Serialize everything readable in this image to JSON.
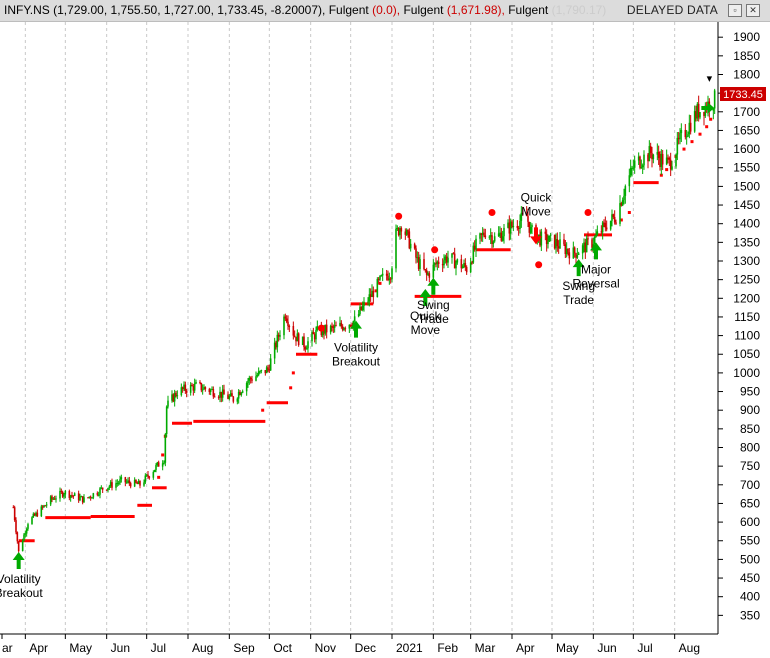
{
  "window": {
    "symbol": "INFY.NS",
    "ohlc": "(1,729.00, 1,755.50, 1,727.00, 1,733.45, -8.20007),",
    "ind1_name": "Fulgent",
    "ind1_val": "(0.0),",
    "ind2_name": "Fulgent",
    "ind2_val": "(1,671.98),",
    "ind3_name": "Fulgent",
    "ind3_val": "(1,790.17)",
    "delayed": "DELAYED DATA",
    "restore_icon": "restore-icon",
    "close_icon": "close-icon",
    "colors": {
      "title_text": "#000000",
      "ind_zero": "#cc0000",
      "ind2": "#cc0000",
      "ind3": "#cccccc"
    }
  },
  "price_tag": "1733.45",
  "chart_data": {
    "type": "candlestick",
    "symbol": "INFY.NS",
    "y_axis": {
      "ticks": [
        350,
        400,
        450,
        500,
        550,
        600,
        650,
        700,
        750,
        800,
        850,
        900,
        950,
        1000,
        1050,
        1100,
        1150,
        1200,
        1250,
        1300,
        1350,
        1400,
        1450,
        1500,
        1550,
        1600,
        1650,
        1700,
        1750,
        1800,
        1850,
        1900
      ],
      "ylim": [
        300,
        1930
      ],
      "position": "right"
    },
    "x_axis": {
      "labels": [
        "ar",
        "Apr",
        "May",
        "Jun",
        "Jul",
        "Aug",
        "Sep",
        "Oct",
        "Nov",
        "Dec",
        "2021",
        "Feb",
        "Mar",
        "Apr",
        "May",
        "Jun",
        "Jul",
        "Aug"
      ]
    },
    "grid": "vertical dashed",
    "colors": {
      "up": "#00aa00",
      "down": "#cc0000",
      "stop": "#ff0000",
      "signal_up": "#00aa00",
      "signal_down": "#ff0000"
    },
    "price_path": [
      [
        "2020-03-23",
        640
      ],
      [
        "2020-03-27",
        520
      ],
      [
        "2020-04-03",
        600
      ],
      [
        "2020-04-09",
        620
      ],
      [
        "2020-04-20",
        660
      ],
      [
        "2020-04-30",
        680
      ],
      [
        "2020-05-15",
        660
      ],
      [
        "2020-05-29",
        690
      ],
      [
        "2020-06-12",
        710
      ],
      [
        "2020-06-26",
        700
      ],
      [
        "2020-07-06",
        740
      ],
      [
        "2020-07-14",
        770
      ],
      [
        "2020-07-16",
        910
      ],
      [
        "2020-07-24",
        950
      ],
      [
        "2020-08-07",
        965
      ],
      [
        "2020-08-21",
        950
      ],
      [
        "2020-09-04",
        930
      ],
      [
        "2020-09-15",
        980
      ],
      [
        "2020-09-30",
        1010
      ],
      [
        "2020-10-08",
        1100
      ],
      [
        "2020-10-13",
        1160
      ],
      [
        "2020-10-20",
        1100
      ],
      [
        "2020-10-28",
        1075
      ],
      [
        "2020-11-06",
        1110
      ],
      [
        "2020-11-20",
        1120
      ],
      [
        "2020-12-04",
        1140
      ],
      [
        "2020-12-10",
        1175
      ],
      [
        "2020-12-24",
        1250
      ],
      [
        "2020-12-31",
        1270
      ],
      [
        "2021-01-04",
        1370
      ],
      [
        "2021-01-08",
        1400
      ],
      [
        "2021-01-13",
        1360
      ],
      [
        "2021-01-20",
        1300
      ],
      [
        "2021-01-27",
        1260
      ],
      [
        "2021-02-05",
        1300
      ],
      [
        "2021-02-12",
        1310
      ],
      [
        "2021-02-26",
        1280
      ],
      [
        "2021-03-05",
        1340
      ],
      [
        "2021-03-12",
        1380
      ],
      [
        "2021-03-19",
        1360
      ],
      [
        "2021-03-30",
        1390
      ],
      [
        "2021-04-12",
        1420
      ],
      [
        "2021-04-15",
        1380
      ],
      [
        "2021-04-22",
        1360
      ],
      [
        "2021-05-03",
        1350
      ],
      [
        "2021-05-17",
        1320
      ],
      [
        "2021-05-31",
        1350
      ],
      [
        "2021-06-11",
        1400
      ],
      [
        "2021-06-18",
        1420
      ],
      [
        "2021-06-25",
        1500
      ],
      [
        "2021-07-02",
        1560
      ],
      [
        "2021-07-14",
        1590
      ],
      [
        "2021-07-28",
        1560
      ],
      [
        "2021-08-06",
        1630
      ],
      [
        "2021-08-18",
        1700
      ],
      [
        "2021-08-31",
        1733
      ]
    ],
    "stop_levels": [
      [
        "2020-03-27",
        "2020-04-08",
        550
      ],
      [
        "2020-04-16",
        "2020-05-20",
        612
      ],
      [
        "2020-05-20",
        "2020-06-22",
        615
      ],
      [
        "2020-06-24",
        "2020-07-05",
        645
      ],
      [
        "2020-07-05",
        "2020-07-16",
        692
      ],
      [
        "2020-07-20",
        "2020-08-04",
        865
      ],
      [
        "2020-08-05",
        "2020-09-28",
        870
      ],
      [
        "2020-09-29",
        "2020-10-15",
        920
      ],
      [
        "2020-10-21",
        "2020-11-06",
        1050
      ],
      [
        "2020-12-01",
        "2020-12-18",
        1185
      ],
      [
        "2021-01-18",
        "2021-02-22",
        1205
      ],
      [
        "2021-03-05",
        "2021-03-31",
        1330
      ],
      [
        "2021-05-25",
        "2021-06-15",
        1370
      ],
      [
        "2021-07-01",
        "2021-07-20",
        1510
      ]
    ],
    "high_markers": [
      [
        "2020-11-09",
        1120
      ],
      [
        "2021-01-06",
        1420
      ],
      [
        "2021-02-02",
        1330
      ],
      [
        "2021-03-17",
        1430
      ],
      [
        "2021-04-21",
        1290
      ],
      [
        "2021-05-28",
        1430
      ]
    ],
    "signals": [
      {
        "date": "2020-03-27",
        "dir": "up",
        "price": 520,
        "label": "Volatility Breakout"
      },
      {
        "date": "2020-12-05",
        "dir": "up",
        "price": 1140,
        "label": "Volatility Breakout"
      },
      {
        "date": "2021-01-26",
        "dir": "up",
        "price": 1225,
        "label": "Quick Move"
      },
      {
        "date": "2021-02-01",
        "dir": "up",
        "price": 1255,
        "label": "Swing Trade"
      },
      {
        "date": "2021-04-19",
        "dir": "down",
        "price": 1390,
        "label": "Quick Move"
      },
      {
        "date": "2021-05-21",
        "dir": "up",
        "price": 1305,
        "label": "Swing Trade"
      },
      {
        "date": "2021-06-03",
        "dir": "up",
        "price": 1350,
        "label": "Major Reversal"
      },
      {
        "date": "2021-08-24",
        "dir": "up",
        "price": 1710,
        "label": ""
      }
    ]
  }
}
